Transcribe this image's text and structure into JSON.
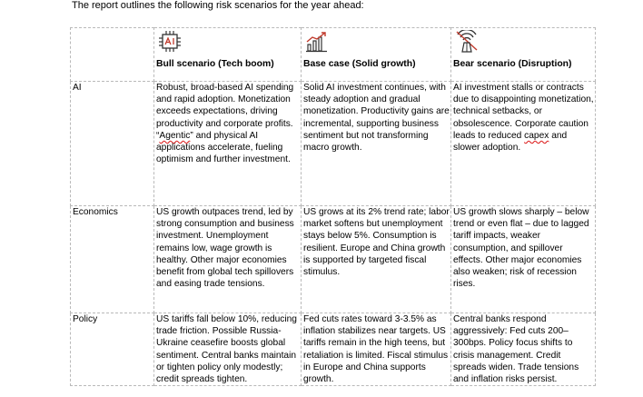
{
  "intro_text": "The report outlines the following risk scenarios for the year ahead:",
  "columns": [
    {
      "label": "Bull scenario (Tech boom)",
      "icon": "ai-chip-icon"
    },
    {
      "label": "Base case (Solid growth)",
      "icon": "growth-chart-icon"
    },
    {
      "label": "Bear scenario (Disruption)",
      "icon": "disruption-icon"
    }
  ],
  "rows": [
    {
      "label": "AI",
      "bull": [
        "Robust, broad-based AI spending and rapid adoption. Monetization exceeds expectations, driving productivity and corporate profits. “",
        "Agentic",
        "” and physical AI applications accelerate, fueling optimism and further investment."
      ],
      "base": "Solid AI investment continues, with steady adoption and gradual monetization. Productivity gains are incremental, supporting business sentiment but not transforming macro growth.",
      "bear": [
        "AI investment stalls or contracts due to disappointing monetization, technical setbacks, or obsolescence. Corporate caution leads to reduced ",
        "capex",
        " and slower adoption."
      ]
    },
    {
      "label": "Economics",
      "bull": "US growth outpaces trend, led by strong consumption and business investment. Unemployment remains low, wage growth is healthy. Other major economies benefit from global tech spillovers and easing trade tensions.",
      "base": "US grows at its 2% trend rate; labor market softens but unemployment stays below 5%. Consumption is resilient. Europe and China growth is supported by targeted fiscal stimulus.",
      "bear": "US growth slows sharply – below trend or even flat – due to lagged tariff impacts, weaker consumption, and spillover effects. Other major economies also weaken; risk of recession rises."
    },
    {
      "label": "Policy",
      "bull": "US tariffs fall below 10%, reducing trade friction. Possible Russia-Ukraine ceasefire boosts global sentiment. Central banks maintain or tighten policy only modestly; credit spreads tighten.",
      "base": "Fed cuts rates toward 3-3.5% as inflation stabilizes near targets. US tariffs remain in the high teens, but retaliation is limited. Fiscal stimulus in Europe and China supports growth.",
      "bear": "Central banks respond aggressively: Fed cuts 200–300bps. Policy focus shifts to crisis management. Credit spreads widen. Trade tensions and inflation risks persist."
    }
  ]
}
